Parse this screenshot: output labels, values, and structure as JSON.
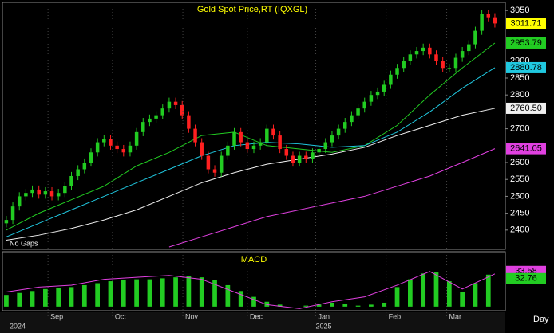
{
  "chart_data": [
    {
      "type": "candlestick",
      "title": "Gold  Spot Price,RT  (IQXGL)",
      "annotation": "No Gaps",
      "up_color": "#22cc22",
      "down_color": "#ff2020",
      "open": [
        2420,
        2430,
        2470,
        2500,
        2510,
        2520,
        2505,
        2515,
        2500,
        2510,
        2530,
        2560,
        2580,
        2600,
        2630,
        2660,
        2670,
        2650,
        2640,
        2630,
        2650,
        2690,
        2720,
        2730,
        2740,
        2760,
        2780,
        2770,
        2740,
        2700,
        2660,
        2620,
        2580,
        2570,
        2620,
        2650,
        2690,
        2660,
        2640,
        2650,
        2660,
        2700,
        2680,
        2640,
        2620,
        2600,
        2620,
        2610,
        2630,
        2640,
        2660,
        2680,
        2700,
        2720,
        2740,
        2760,
        2780,
        2800,
        2810,
        2830,
        2860,
        2880,
        2900,
        2920,
        2930,
        2940,
        2920,
        2900,
        2880,
        2880,
        2910,
        2930,
        2950,
        2990,
        3040,
        3030
      ],
      "high": [
        2442,
        2482,
        2512,
        2522,
        2532,
        2532,
        2527,
        2527,
        2522,
        2542,
        2572,
        2592,
        2612,
        2642,
        2672,
        2682,
        2682,
        2662,
        2652,
        2662,
        2702,
        2732,
        2742,
        2752,
        2772,
        2792,
        2792,
        2782,
        2752,
        2712,
        2672,
        2632,
        2592,
        2632,
        2662,
        2702,
        2702,
        2672,
        2662,
        2672,
        2712,
        2712,
        2692,
        2652,
        2632,
        2632,
        2632,
        2642,
        2652,
        2672,
        2692,
        2712,
        2732,
        2752,
        2772,
        2792,
        2812,
        2822,
        2842,
        2872,
        2892,
        2912,
        2932,
        2942,
        2952,
        2952,
        2932,
        2912,
        2892,
        2922,
        2942,
        2962,
        3002,
        3052,
        3052,
        3042
      ],
      "low": [
        2408,
        2418,
        2458,
        2488,
        2498,
        2493,
        2493,
        2488,
        2488,
        2498,
        2518,
        2548,
        2568,
        2588,
        2618,
        2648,
        2638,
        2628,
        2618,
        2618,
        2638,
        2678,
        2708,
        2718,
        2728,
        2748,
        2758,
        2728,
        2688,
        2648,
        2608,
        2568,
        2558,
        2558,
        2608,
        2638,
        2648,
        2628,
        2628,
        2638,
        2648,
        2668,
        2628,
        2608,
        2588,
        2588,
        2598,
        2598,
        2618,
        2628,
        2648,
        2668,
        2688,
        2708,
        2728,
        2748,
        2768,
        2788,
        2798,
        2818,
        2848,
        2868,
        2888,
        2908,
        2918,
        2908,
        2888,
        2868,
        2868,
        2868,
        2898,
        2918,
        2938,
        2978,
        3018,
        2999.71
      ],
      "close": [
        2430,
        2470,
        2500,
        2510,
        2520,
        2505,
        2515,
        2500,
        2510,
        2530,
        2560,
        2580,
        2600,
        2630,
        2660,
        2670,
        2650,
        2640,
        2630,
        2650,
        2690,
        2720,
        2730,
        2740,
        2760,
        2780,
        2770,
        2740,
        2700,
        2660,
        2620,
        2580,
        2570,
        2620,
        2650,
        2690,
        2660,
        2640,
        2650,
        2660,
        2700,
        2680,
        2640,
        2620,
        2600,
        2620,
        2610,
        2630,
        2640,
        2660,
        2680,
        2700,
        2720,
        2740,
        2760,
        2780,
        2800,
        2810,
        2830,
        2860,
        2880,
        2900,
        2920,
        2930,
        2940,
        2920,
        2900,
        2880,
        2880,
        2910,
        2930,
        2950,
        2990,
        3040,
        3030,
        3011.71
      ],
      "last_color": "#ffff00",
      "series": [
        {
          "color": "#22cc22",
          "x": [
            0,
            5,
            10,
            15,
            20,
            25,
            30,
            35,
            40,
            45,
            50,
            55,
            60,
            65,
            70,
            75
          ],
          "values": [
            2400,
            2450,
            2490,
            2530,
            2590,
            2630,
            2680,
            2690,
            2650,
            2640,
            2630,
            2650,
            2710,
            2800,
            2880,
            2953.79
          ],
          "last_label": "2953.79"
        },
        {
          "color": "#20c8e0",
          "x": [
            0,
            5,
            10,
            15,
            20,
            25,
            30,
            35,
            40,
            45,
            50,
            55,
            60,
            65,
            70,
            75
          ],
          "values": [
            2380,
            2420,
            2460,
            2500,
            2540,
            2580,
            2620,
            2650,
            2660,
            2655,
            2645,
            2650,
            2690,
            2750,
            2820,
            2880.78
          ],
          "last_label": "2880.78"
        },
        {
          "color": "#f0f0f0",
          "x": [
            0,
            5,
            10,
            15,
            20,
            25,
            30,
            35,
            40,
            45,
            50,
            55,
            60,
            65,
            70,
            75
          ],
          "values": [
            2370,
            2385,
            2405,
            2430,
            2460,
            2500,
            2540,
            2570,
            2595,
            2610,
            2625,
            2645,
            2680,
            2710,
            2740,
            2760.5
          ],
          "last_label": "2760.50"
        },
        {
          "color": "#e040e0",
          "x": [
            0,
            5,
            10,
            15,
            20,
            25,
            30,
            35,
            40,
            45,
            50,
            55,
            60,
            65,
            70,
            75
          ],
          "values": [
            null,
            null,
            null,
            null,
            null,
            2350,
            2380,
            2410,
            2440,
            2460,
            2480,
            2500,
            2530,
            2560,
            2600,
            2641.05
          ],
          "last_label": "2641.05"
        }
      ],
      "xlim": [
        -0.6,
        76.6
      ],
      "ylim": [
        2343,
        3074
      ],
      "yticks": [
        3050,
        2900,
        2850,
        2800,
        2700,
        2600,
        2550,
        2500,
        2450,
        2400
      ]
    },
    {
      "type": "macd",
      "title": "MACD",
      "x_unit": "Day",
      "year_labels": [
        {
          "value": 0,
          "label": "2024"
        },
        {
          "value": 47.5,
          "label": "2025"
        }
      ],
      "histogram": {
        "color": "#22cc22",
        "x": [
          0,
          2,
          4,
          6,
          8,
          10,
          12,
          14,
          16,
          18,
          20,
          22,
          24,
          26,
          28,
          30,
          32,
          34,
          36,
          38,
          40,
          42,
          44,
          46,
          48,
          50,
          52,
          54,
          56,
          58,
          60,
          62,
          64,
          66,
          68,
          70,
          72,
          74
        ],
        "values": [
          12,
          14,
          16,
          18,
          19,
          20,
          22,
          24,
          26,
          27,
          28,
          28,
          29,
          30,
          31,
          30,
          27,
          22,
          16,
          10,
          5,
          2,
          0,
          1,
          2,
          4,
          3,
          1,
          2,
          4,
          20,
          28,
          34,
          35,
          26,
          15,
          24,
          32.76
        ]
      },
      "line": {
        "color": "#e040e0",
        "x": [
          0,
          5,
          10,
          15,
          20,
          25,
          30,
          35,
          40,
          45,
          50,
          55,
          60,
          65,
          70,
          75
        ],
        "values": [
          15,
          20,
          22,
          28,
          30,
          32,
          28,
          15,
          2,
          -2,
          5,
          10,
          22,
          36,
          18,
          33.58
        ]
      },
      "xlim": [
        -0.6,
        76.6
      ],
      "ylim": [
        -4.2,
        56.3
      ],
      "xticks": [
        {
          "value": 6.4,
          "label": "Sep"
        },
        {
          "value": 16.3,
          "label": "Oct"
        },
        {
          "value": 27.1,
          "label": "Nov"
        },
        {
          "value": 37,
          "label": "Dec"
        },
        {
          "value": 47.5,
          "label": "Jan"
        },
        {
          "value": 58.3,
          "label": "Feb"
        },
        {
          "value": 67.6,
          "label": "Mar"
        }
      ]
    }
  ]
}
